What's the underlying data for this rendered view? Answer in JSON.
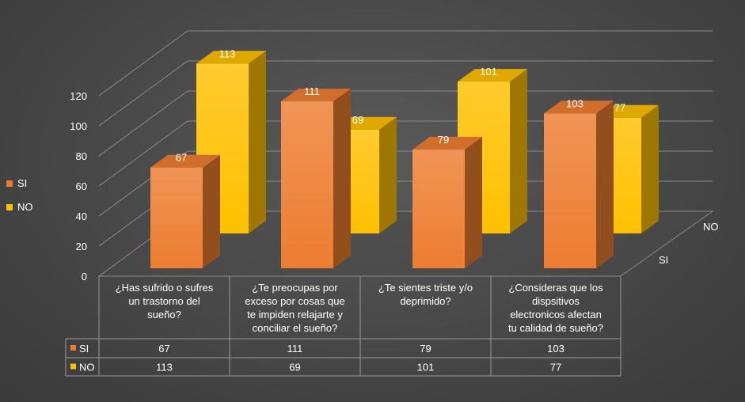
{
  "chart_data": {
    "type": "bar",
    "subtype": "3d-clustered-column-with-data-table",
    "categories": [
      "¿Has sufrido o sufres un trastorno del sueño?",
      "¿Te preocupas por exceso por cosas que te impiden relajarte y conciliar el sueño?",
      "¿Te sientes triste y/o deprimido?",
      "¿Consideras que los dispsitivos electronicos afectan tu calidad de sueño?"
    ],
    "category_lines": [
      [
        "¿Has sufrido o sufres",
        "un trastorno del",
        "sueño?"
      ],
      [
        "¿Te preocupas por",
        "exceso por cosas que",
        "te impiden relajarte y",
        "conciliar el sueño?"
      ],
      [
        "¿Te sientes triste y/o",
        "deprimido?"
      ],
      [
        "¿Consideras que los",
        "dispsitivos",
        "electronicos afectan",
        "tu calidad de sueño?"
      ]
    ],
    "series": [
      {
        "name": "SI",
        "values": [
          67,
          111,
          79,
          103
        ],
        "color": "#ED7D31"
      },
      {
        "name": "NO",
        "values": [
          113,
          69,
          101,
          77
        ],
        "color": "#FFC000"
      }
    ],
    "ylim": [
      0,
      120
    ],
    "yticks": [
      0,
      20,
      40,
      60,
      80,
      100,
      120
    ],
    "depth_axis_labels": [
      "SI",
      "NO"
    ],
    "legend_position": "left",
    "grid": true,
    "data_table": true
  }
}
